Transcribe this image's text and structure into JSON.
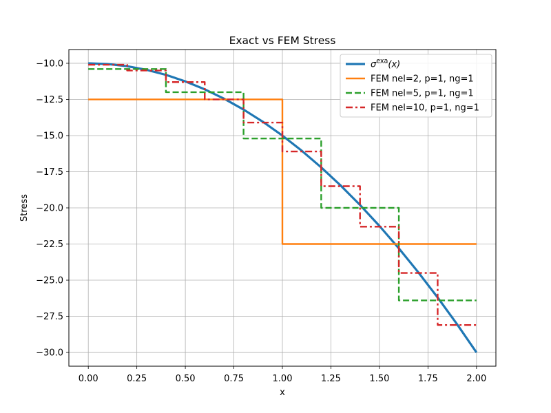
{
  "chart_data": {
    "type": "line",
    "title": "Exact vs FEM Stress",
    "xlabel": "x",
    "ylabel": "Stress",
    "xlim": [
      -0.1,
      2.1
    ],
    "ylim": [
      -30.95,
      -9.05
    ],
    "x_ticks": [
      0.0,
      0.25,
      0.5,
      0.75,
      1.0,
      1.25,
      1.5,
      1.75,
      2.0
    ],
    "x_tick_labels": [
      "0.00",
      "0.25",
      "0.50",
      "0.75",
      "1.00",
      "1.25",
      "1.50",
      "1.75",
      "2.00"
    ],
    "y_ticks": [
      -10.0,
      -12.5,
      -15.0,
      -17.5,
      -20.0,
      -22.5,
      -25.0,
      -27.5,
      -30.0
    ],
    "y_tick_labels": [
      "−10.0",
      "−12.5",
      "−15.0",
      "−17.5",
      "−20.0",
      "−22.5",
      "−25.0",
      "−27.5",
      "−30.0"
    ],
    "grid": true,
    "legend_position": "top-right",
    "series": [
      {
        "name": "σ",
        "name_sup": "exa",
        "name_suffix": "(x)",
        "kind": "curve",
        "color": "#1f77b4",
        "line_style": "solid",
        "x": [
          0.0,
          0.1,
          0.2,
          0.3,
          0.4,
          0.5,
          0.6,
          0.7,
          0.8,
          0.9,
          1.0,
          1.1,
          1.2,
          1.3,
          1.4,
          1.5,
          1.6,
          1.7,
          1.8,
          1.9,
          2.0
        ],
        "y": [
          -10.0,
          -10.05,
          -10.2,
          -10.45,
          -10.8,
          -11.25,
          -11.8,
          -12.45,
          -13.2,
          -14.05,
          -15.0,
          -16.05,
          -17.2,
          -18.45,
          -19.8,
          -21.25,
          -22.8,
          -24.45,
          -26.2,
          -28.05,
          -30.0
        ]
      },
      {
        "name": "FEM nel=2, p=1, ng=1",
        "kind": "step",
        "color": "#ff7f0e",
        "line_style": "solid",
        "edges": [
          0.0,
          1.0,
          2.0
        ],
        "values": [
          -12.5,
          -22.5
        ]
      },
      {
        "name": "FEM nel=5, p=1, ng=1",
        "kind": "step",
        "color": "#2ca02c",
        "line_style": "dashed",
        "edges": [
          0.0,
          0.4,
          0.8,
          1.2,
          1.6,
          2.0
        ],
        "values": [
          -10.4,
          -12.0,
          -15.2,
          -20.0,
          -26.4
        ]
      },
      {
        "name": "FEM nel=10, p=1, ng=1",
        "kind": "step",
        "color": "#d62728",
        "line_style": "dashdot",
        "edges": [
          0.0,
          0.2,
          0.4,
          0.6,
          0.8,
          1.0,
          1.2,
          1.4,
          1.6,
          1.8,
          2.0
        ],
        "values": [
          -10.1,
          -10.5,
          -11.3,
          -12.5,
          -14.1,
          -16.1,
          -18.5,
          -21.3,
          -24.5,
          -28.1
        ]
      }
    ]
  }
}
